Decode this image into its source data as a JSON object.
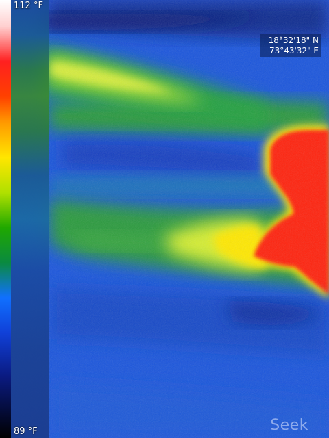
{
  "scale": {
    "max_label": "112 °F",
    "min_label": "89 °F"
  },
  "gps": {
    "latitude": "18°32'18\" N",
    "longitude": "73°43'32\" E"
  },
  "logo": {
    "text": "Seek"
  },
  "colors": {
    "background": "#1a50d8",
    "hot_region": "#ff1010",
    "warm_band": "#d8ee30",
    "mid_band": "#30a040"
  }
}
